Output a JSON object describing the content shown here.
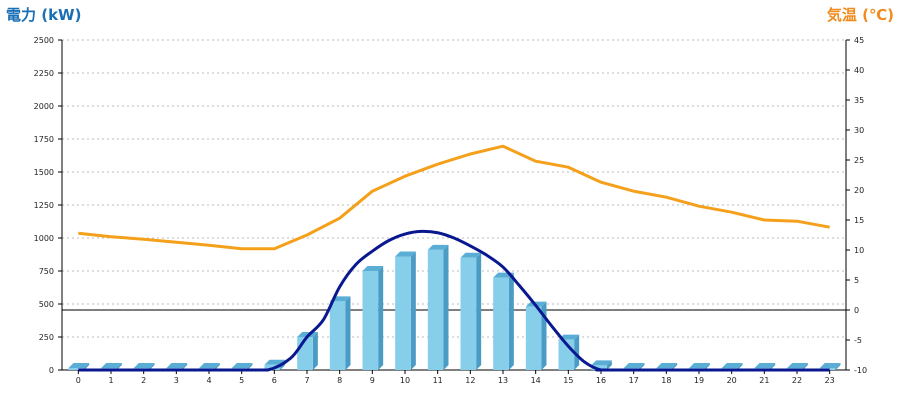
{
  "colors": {
    "power_title": "#1a6fb5",
    "temp_title": "#f08c1e",
    "bar_front": "#87ceeb",
    "bar_side": "#4a9cc4",
    "bar_top": "#5aaed6",
    "power_line": "#0a1890",
    "temp_line": "#f5a01a"
  },
  "titles": {
    "left": "電力 (kW)",
    "right": "気温 (℃)"
  },
  "chart_data": {
    "type": "bar",
    "categories": [
      "0",
      "1",
      "2",
      "3",
      "4",
      "5",
      "6",
      "7",
      "8",
      "9",
      "10",
      "11",
      "12",
      "13",
      "14",
      "15",
      "16",
      "17",
      "18",
      "19",
      "20",
      "21",
      "22",
      "23"
    ],
    "y_left": {
      "label": "電力 (kW)",
      "ylim": [
        0,
        2500
      ],
      "ticks": [
        0,
        250,
        500,
        750,
        1000,
        1250,
        1500,
        1750,
        2000,
        2250,
        2500
      ]
    },
    "y_right": {
      "label": "気温 (℃)",
      "ylim": [
        -10,
        45
      ],
      "ticks": [
        -10,
        -5,
        0,
        5,
        10,
        15,
        20,
        25,
        30,
        35,
        40,
        45
      ]
    },
    "grid": true,
    "series": [
      {
        "kind": "bar",
        "axis": "left",
        "values": [
          15,
          15,
          15,
          15,
          15,
          15,
          40,
          250,
          520,
          750,
          860,
          910,
          850,
          700,
          480,
          230,
          35,
          15,
          15,
          15,
          15,
          15,
          15,
          15
        ]
      },
      {
        "kind": "smooth-line",
        "axis": "left",
        "x": [
          0,
          5,
          5.8,
          6.5,
          7,
          7.5,
          8,
          8.5,
          9,
          9.5,
          10,
          10.5,
          11,
          11.5,
          12,
          12.5,
          13,
          13.5,
          14,
          14.5,
          15,
          15.5,
          16,
          16.5,
          23
        ],
        "values": [
          0,
          0,
          0,
          90,
          250,
          380,
          630,
          800,
          900,
          980,
          1030,
          1050,
          1040,
          1000,
          940,
          870,
          780,
          640,
          490,
          330,
          180,
          60,
          0,
          0,
          0
        ]
      },
      {
        "kind": "line",
        "axis": "right",
        "values": [
          12.8,
          12.2,
          11.8,
          11.3,
          10.8,
          10.2,
          10.2,
          12.5,
          15.3,
          19.8,
          22.3,
          24.3,
          26.0,
          27.3,
          24.8,
          23.8,
          21.3,
          19.8,
          18.8,
          17.3,
          16.3,
          15.0,
          14.8,
          13.8
        ]
      }
    ]
  }
}
